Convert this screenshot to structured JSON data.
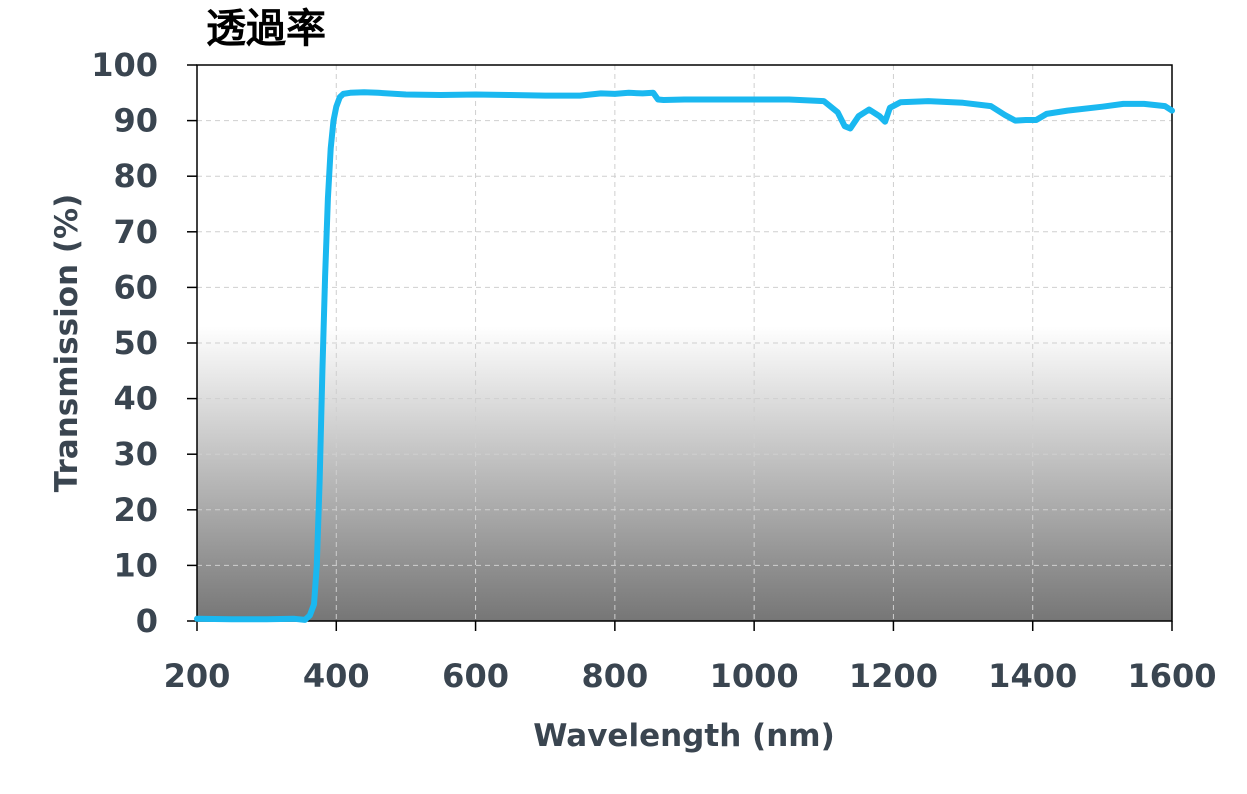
{
  "chart_data": {
    "type": "line",
    "title": "透過率",
    "xlabel": "Wavelength (nm)",
    "ylabel": "Transmission (%)",
    "xlim": [
      200,
      1600
    ],
    "ylim": [
      0,
      100
    ],
    "x_ticks": [
      200,
      400,
      600,
      800,
      1000,
      1200,
      1400,
      1600
    ],
    "y_ticks": [
      0,
      10,
      20,
      30,
      40,
      50,
      60,
      70,
      80,
      90,
      100
    ],
    "grid": true,
    "legend": "none",
    "line_color": "#1ab8f0",
    "series": [
      {
        "x": [
          200,
          250,
          300,
          340,
          355,
          362,
          368,
          372,
          376,
          380,
          384,
          388,
          392,
          396,
          400,
          405,
          410,
          420,
          440,
          460,
          500,
          550,
          600,
          650,
          700,
          750,
          780,
          800,
          820,
          840,
          855,
          862,
          870,
          900,
          950,
          1000,
          1050,
          1100,
          1120,
          1130,
          1138,
          1150,
          1165,
          1180,
          1188,
          1195,
          1210,
          1250,
          1300,
          1340,
          1360,
          1375,
          1390,
          1405,
          1420,
          1450,
          1500,
          1530,
          1560,
          1590,
          1600
        ],
        "y": [
          0.4,
          0.3,
          0.3,
          0.4,
          0.2,
          1,
          3,
          10,
          25,
          45,
          62,
          76,
          85,
          90,
          92.5,
          94.2,
          94.8,
          95.0,
          95.1,
          95.0,
          94.7,
          94.6,
          94.7,
          94.6,
          94.5,
          94.5,
          94.9,
          94.8,
          95.0,
          94.9,
          95.0,
          93.8,
          93.7,
          93.8,
          93.8,
          93.8,
          93.8,
          93.5,
          91.5,
          89.0,
          88.6,
          90.8,
          92.0,
          90.8,
          89.8,
          92.3,
          93.3,
          93.5,
          93.2,
          92.6,
          91.0,
          90.0,
          90.1,
          90.1,
          91.2,
          91.8,
          92.5,
          93.0,
          93.0,
          92.6,
          91.8
        ]
      }
    ]
  }
}
